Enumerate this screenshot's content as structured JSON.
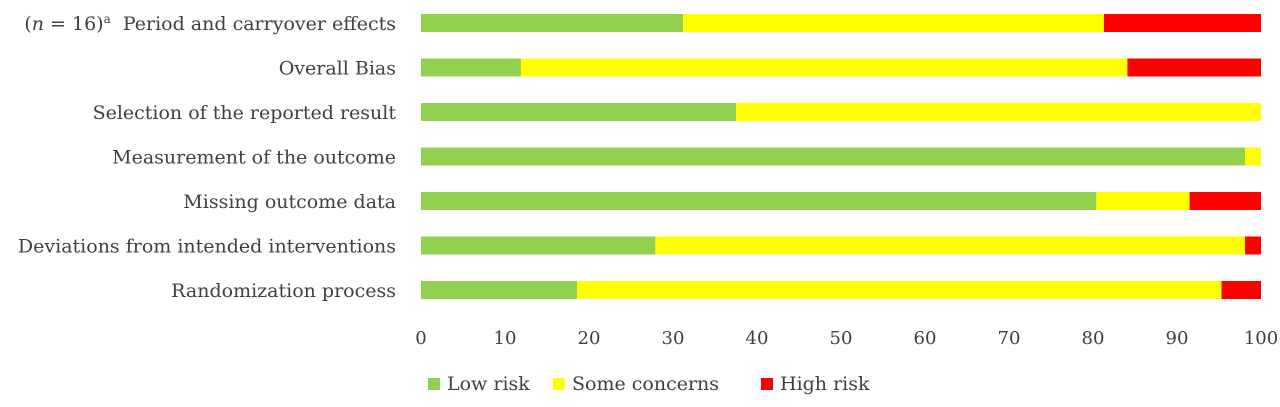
{
  "chart_data": {
    "type": "bar",
    "orientation": "horizontal",
    "stacked": true,
    "categories": [
      "Period and carryover effects",
      "Overall Bias",
      "Selection of the reported result",
      "Measurement of the outcome",
      "Missing outcome data",
      "Deviations from intended interventions",
      "Randomization process"
    ],
    "first_category_prefix": {
      "n_italic": "n",
      "equals": " = 16)",
      "superscript": "a",
      "open": "("
    },
    "series": [
      {
        "name": "Low risk",
        "color": "#92d050",
        "values": [
          31.2,
          11.9,
          37.5,
          98.1,
          80.4,
          27.9,
          18.6
        ]
      },
      {
        "name": "Some concerns",
        "color": "#ffff00",
        "values": [
          50.1,
          72.2,
          62.5,
          1.9,
          11.1,
          70.2,
          76.7
        ]
      },
      {
        "name": "High risk",
        "color": "#ff0000",
        "values": [
          18.7,
          15.9,
          0.0,
          0.0,
          8.5,
          1.9,
          4.7
        ]
      }
    ],
    "xlim": [
      0,
      100
    ],
    "xticks": [
      "0",
      "10",
      "20",
      "30",
      "40",
      "50",
      "60",
      "70",
      "80",
      "90",
      "100"
    ],
    "grid": false,
    "legend_position": "bottom"
  }
}
